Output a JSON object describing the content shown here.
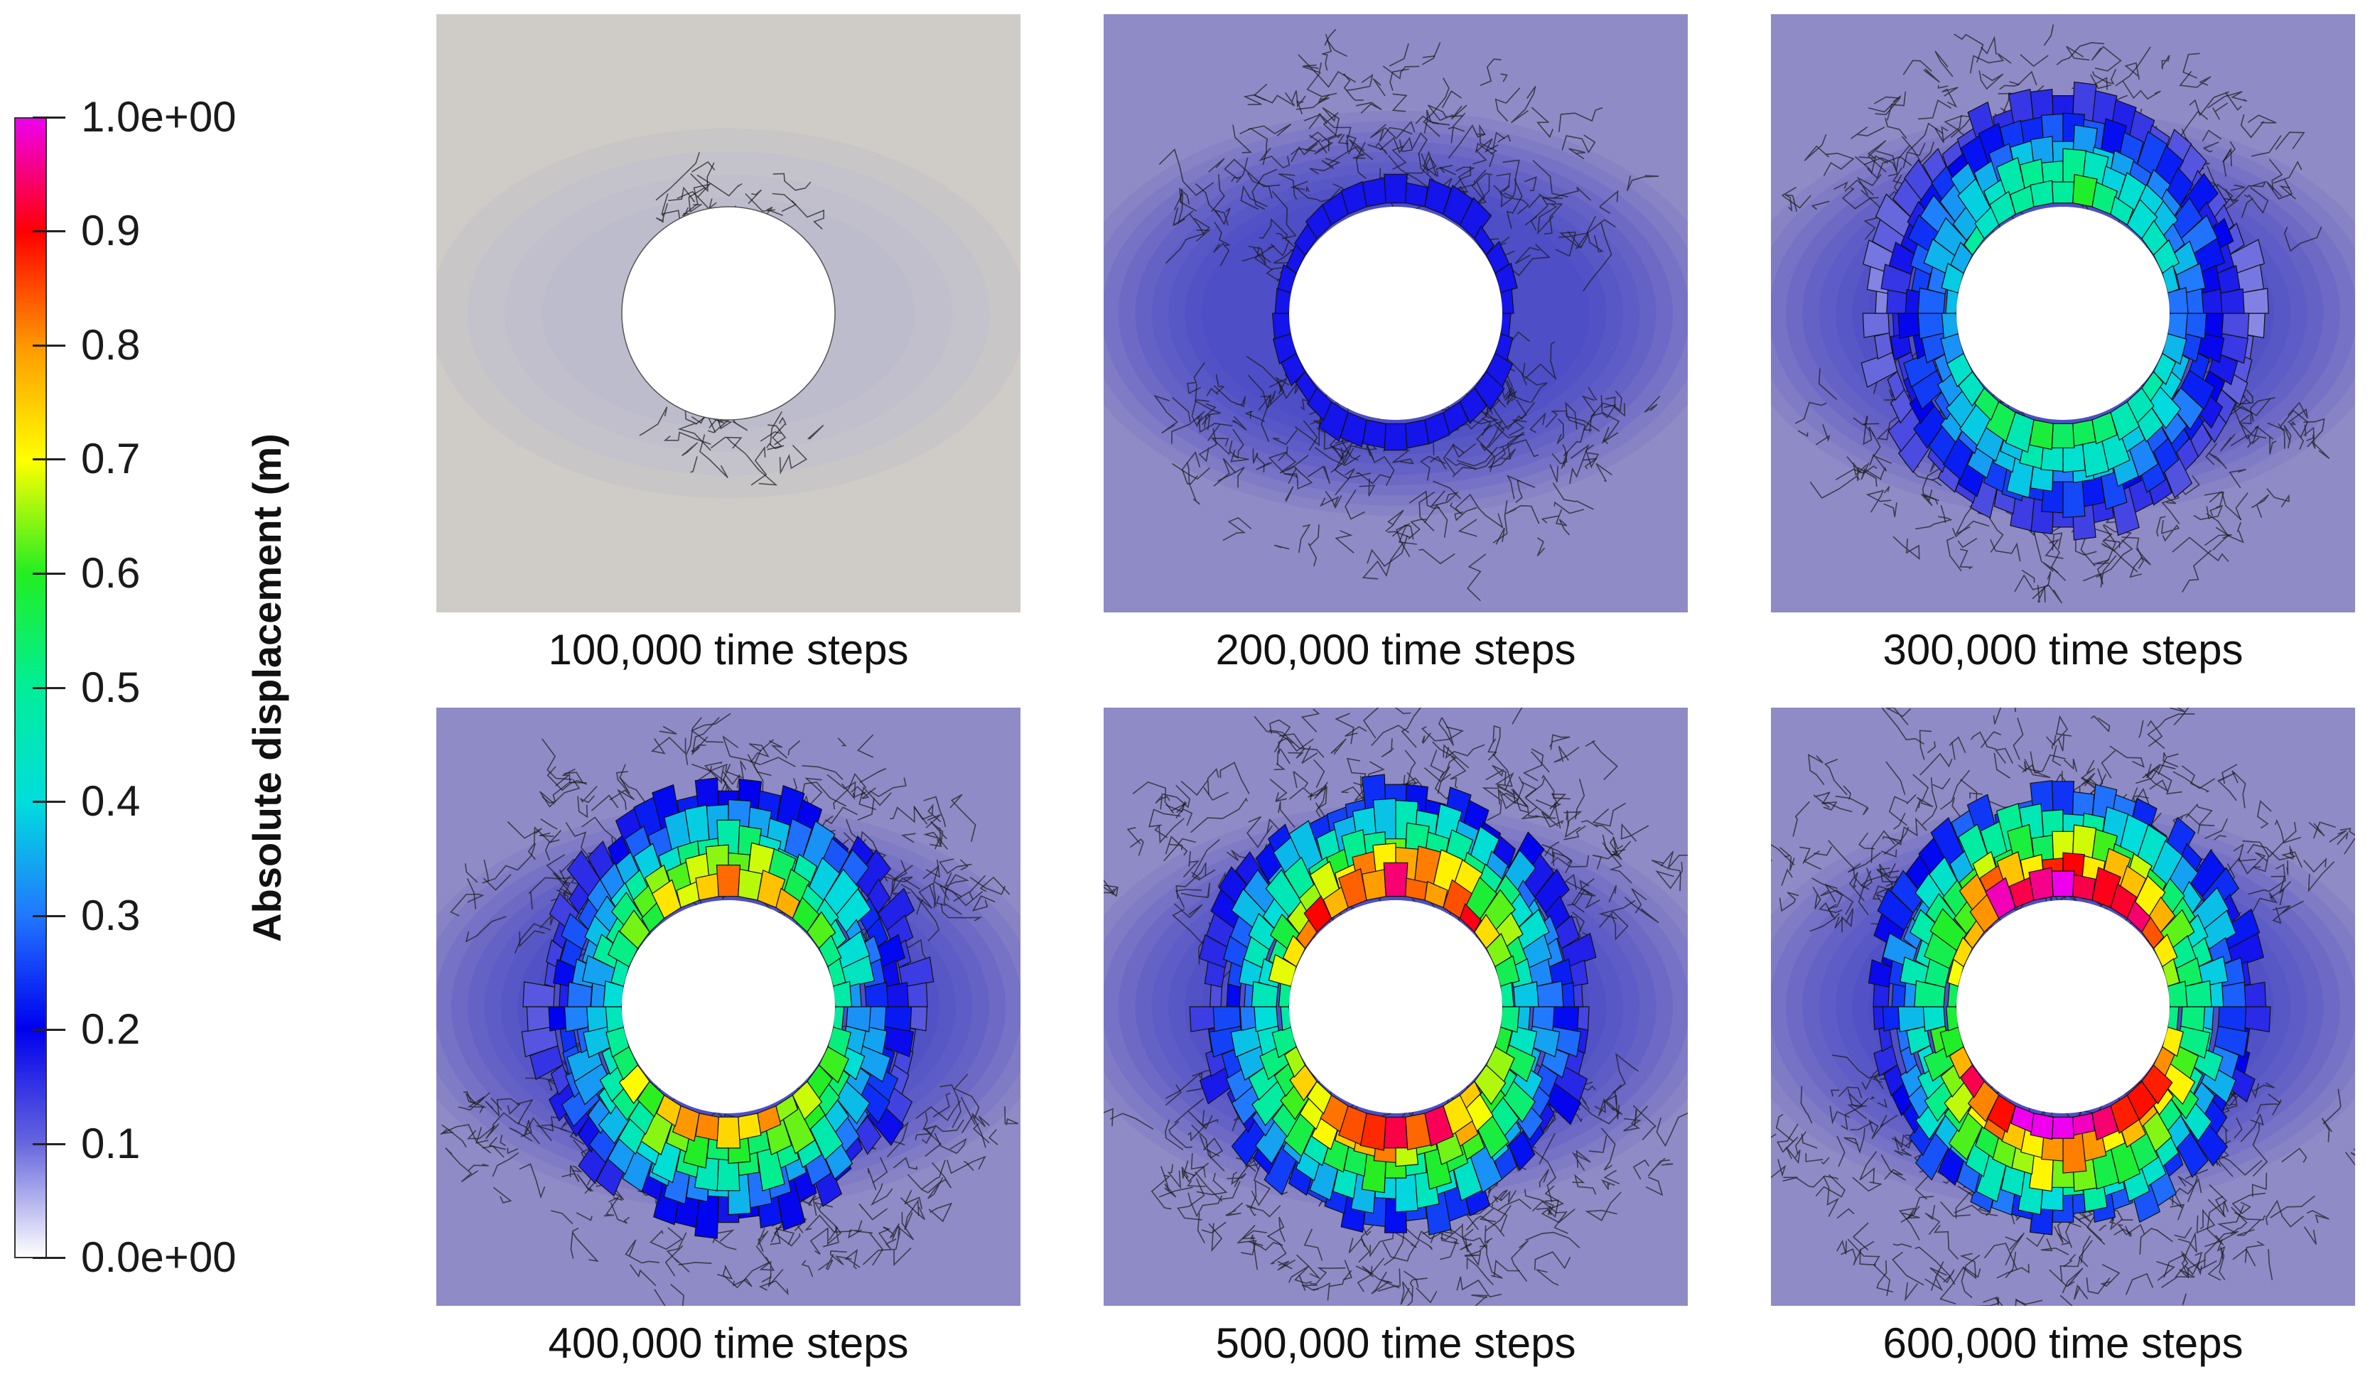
{
  "colorbar": {
    "title": "Absolute displacement (m)",
    "labels": [
      "1.0e+00",
      "0.9",
      "0.8",
      "0.7",
      "0.6",
      "0.5",
      "0.4",
      "0.3",
      "0.2",
      "0.1",
      "0.0e+00"
    ],
    "colors": [
      "#ee00ee",
      "#ff0000",
      "#ff9900",
      "#ffff00",
      "#22ee22",
      "#00ee99",
      "#00dddd",
      "#2277ff",
      "#0000ee",
      "#6666dd",
      "#ffffff"
    ]
  },
  "panels": [
    {
      "caption": "100,000 time steps",
      "max_displacement": 0.08
    },
    {
      "caption": "200,000 time steps",
      "max_displacement": 0.2
    },
    {
      "caption": "300,000 time steps",
      "max_displacement": 0.55
    },
    {
      "caption": "400,000 time steps",
      "max_displacement": 0.75
    },
    {
      "caption": "500,000 time steps",
      "max_displacement": 0.9
    },
    {
      "caption": "600,000 time steps",
      "max_displacement": 1.0
    }
  ]
}
